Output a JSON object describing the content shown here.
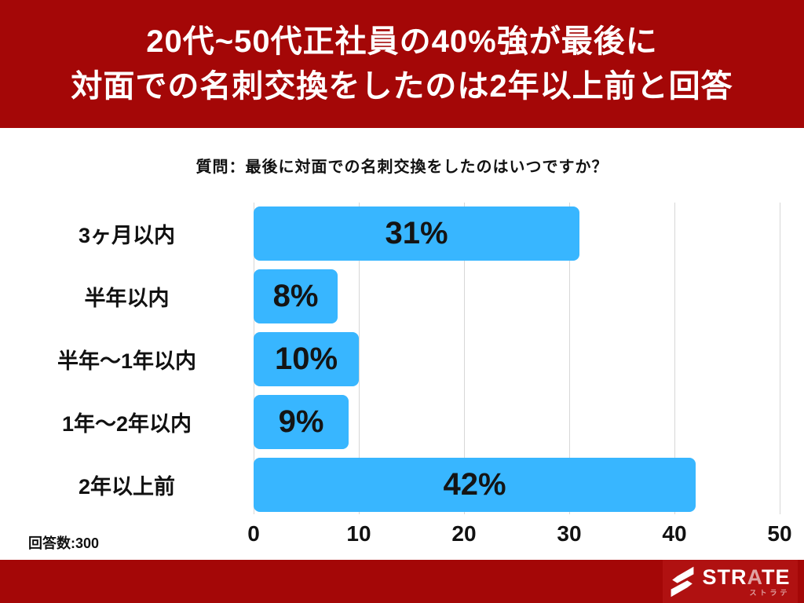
{
  "title": {
    "line1": "20代~50代正社員の40%強が最後に",
    "line2": "対面での名刺交換をしたのは2年以上前と回答"
  },
  "question": "質問：最後に対面での名刺交換をしたのはいつですか？",
  "respondents_label": "回答数:300",
  "footer": {
    "brand": "STRATE",
    "brand_accent_index": 3,
    "brand_sub": "ストラテ"
  },
  "colors": {
    "banner_red": "#a40707",
    "logo_red": "#b01111",
    "bar_blue": "#38b6ff",
    "grid_gray": "#d7d7d7",
    "brand_pink": "#e0a3a3"
  },
  "chart_data": {
    "type": "bar",
    "orientation": "horizontal",
    "title": "最後に対面での名刺交換をしたのはいつですか？",
    "categories": [
      "3ヶ月以内",
      "半年以内",
      "半年〜1年以内",
      "1年〜2年以内",
      "2年以上前"
    ],
    "values": [
      31,
      8,
      10,
      9,
      42
    ],
    "value_labels": [
      "31%",
      "8%",
      "10%",
      "9%",
      "42%"
    ],
    "x_ticks": [
      "0",
      "10",
      "20",
      "30",
      "40",
      "50"
    ],
    "xlim": [
      0,
      50
    ],
    "xlabel": "",
    "ylabel": "",
    "grid": true,
    "legend": false,
    "bar_color": "#38b6ff",
    "sample_size": 300
  }
}
